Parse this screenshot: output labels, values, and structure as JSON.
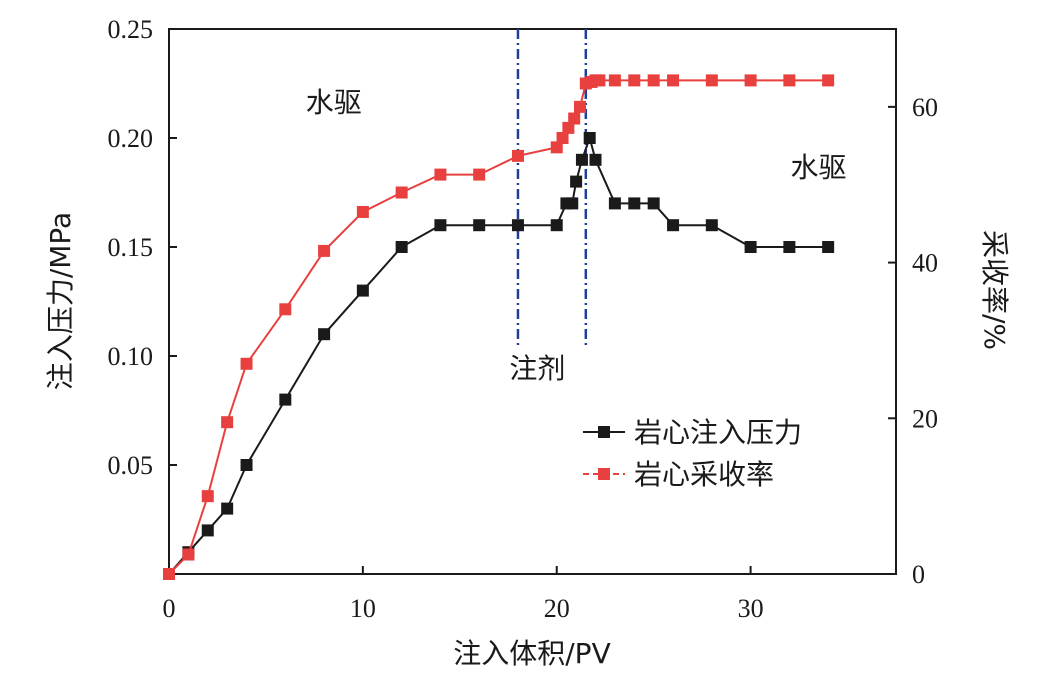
{
  "chart_data": {
    "type": "line",
    "xlabel": "注入体积/PV",
    "ylabel_left": "注入压力/MPa",
    "ylabel_right": "采收率/%",
    "xlim": [
      0,
      37.5
    ],
    "ylim_left": [
      0,
      0.25
    ],
    "ylim_right": [
      0,
      70
    ],
    "x_ticks": [
      "0",
      "10",
      "20",
      "30"
    ],
    "x_tick_values": [
      0,
      10,
      20,
      30
    ],
    "y_left_ticks": [
      "0.05",
      "0.10",
      "0.15",
      "0.20",
      "0.25"
    ],
    "y_left_tick_values": [
      0.05,
      0.1,
      0.15,
      0.2,
      0.25
    ],
    "y_right_ticks": [
      "0",
      "20",
      "40",
      "60"
    ],
    "y_right_tick_values": [
      0,
      20,
      40,
      60
    ],
    "grid": false,
    "legend_position": "center-right",
    "annotations": [
      {
        "text": "水驱",
        "x": 8.5,
        "y_left": 0.212
      },
      {
        "text": "注剂",
        "x": 19.0,
        "y_left": 0.09
      },
      {
        "text": "水驱",
        "x": 33.5,
        "y_left": 0.182
      }
    ],
    "vlines": [
      {
        "x": 18,
        "color": "#1f3f99"
      },
      {
        "x": 21.5,
        "color": "#1f3f99"
      }
    ],
    "series": [
      {
        "name": "岩心注入压力",
        "axis": "left",
        "color": "#1a1a1a",
        "marker_color": "#1a1a1a",
        "x": [
          0,
          1,
          2,
          3,
          4,
          6,
          8,
          10,
          12,
          14,
          16,
          18,
          20,
          20.5,
          20.8,
          21.0,
          21.3,
          21.7,
          22.0,
          23,
          24,
          25,
          26,
          28,
          30,
          32,
          34
        ],
        "values": [
          0,
          0.01,
          0.02,
          0.03,
          0.05,
          0.08,
          0.11,
          0.13,
          0.15,
          0.16,
          0.16,
          0.16,
          0.16,
          0.17,
          0.17,
          0.18,
          0.19,
          0.2,
          0.19,
          0.17,
          0.17,
          0.17,
          0.16,
          0.16,
          0.15,
          0.15,
          0.15
        ]
      },
      {
        "name": "岩心采收率",
        "axis": "right",
        "color": "#e8403f",
        "marker_color": "#e8403f",
        "x": [
          0,
          1,
          2,
          3,
          4,
          6,
          8,
          10,
          12,
          14,
          16,
          18,
          20,
          20.3,
          20.6,
          20.9,
          21.2,
          21.5,
          21.8,
          22.0,
          22.2,
          23,
          24,
          25,
          26,
          28,
          30,
          32,
          34
        ],
        "values": [
          0,
          2.5,
          10,
          19.5,
          27,
          34,
          41.5,
          46.5,
          49,
          51.3,
          51.3,
          53.7,
          54.8,
          56,
          57.3,
          58.5,
          60,
          63,
          63.2,
          63.4,
          63.4,
          63.4,
          63.4,
          63.4,
          63.4,
          63.4,
          63.4,
          63.4,
          63.4
        ]
      }
    ]
  }
}
